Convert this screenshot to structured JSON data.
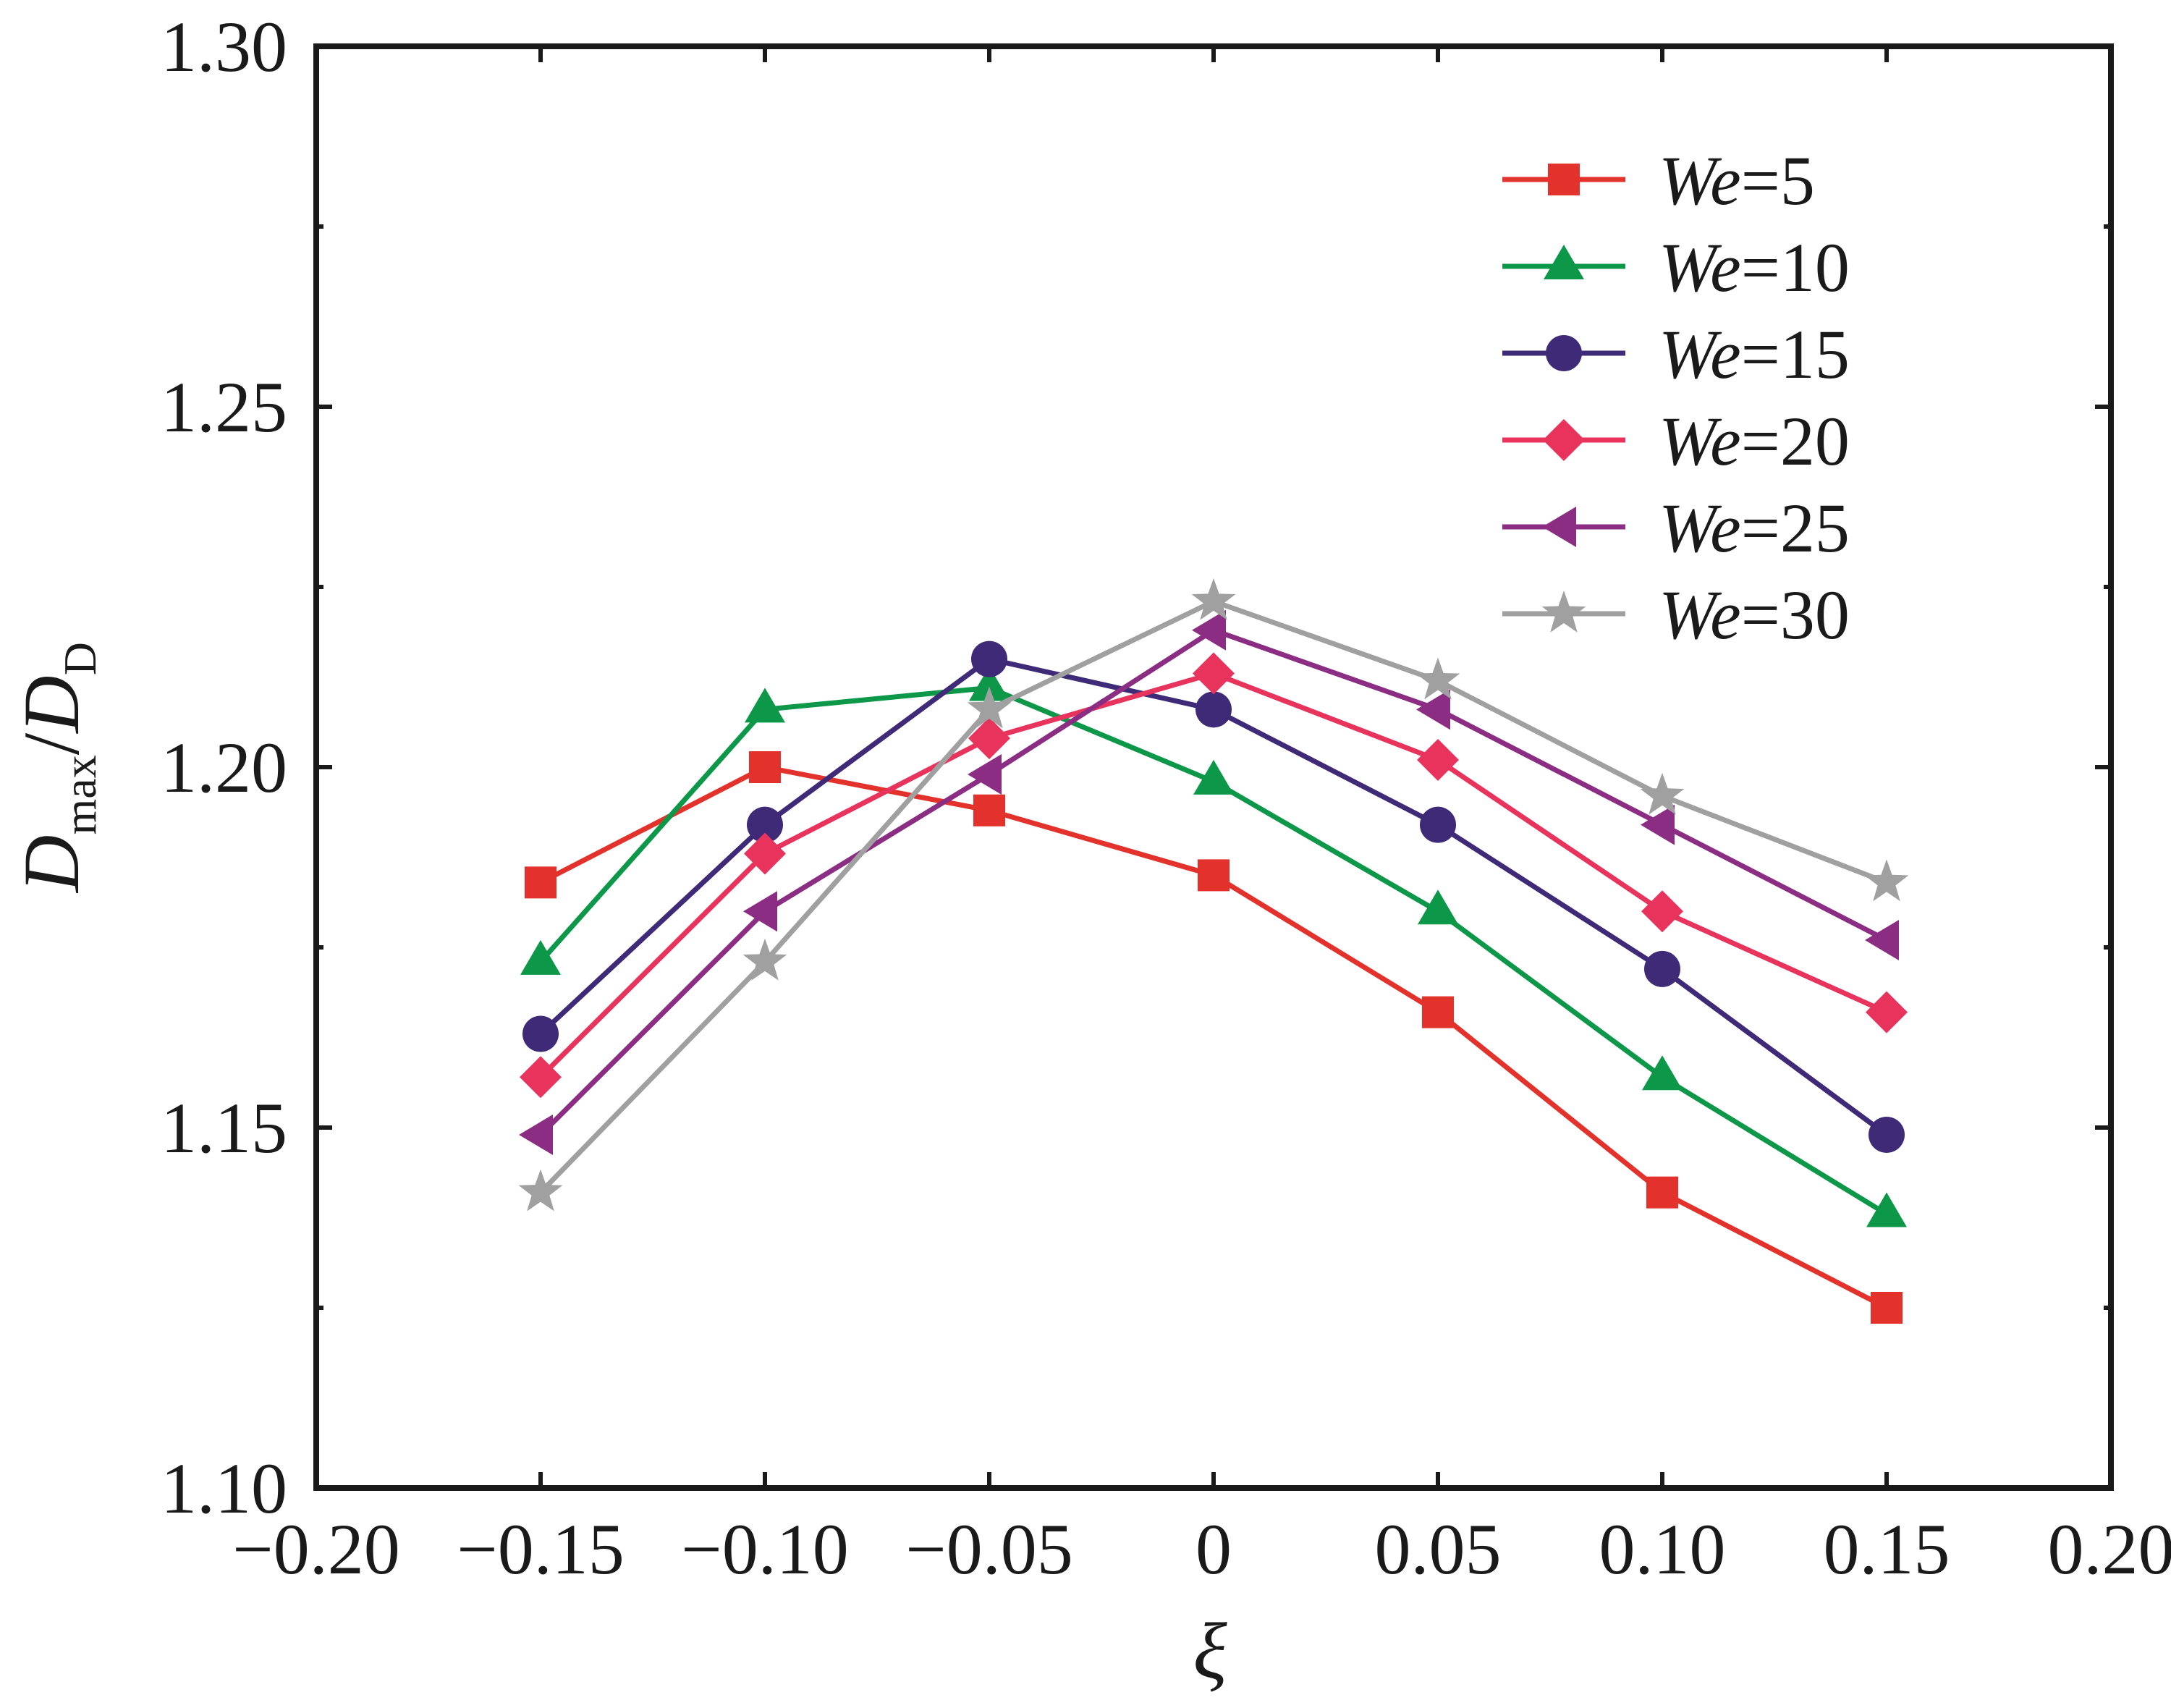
{
  "chart_data": {
    "type": "line",
    "title": "",
    "xlabel": "ξ",
    "ylabel": {
      "main": "D",
      "sub": "max",
      "sep": "/",
      "main2": "D",
      "sub2": "D"
    },
    "xlim": [
      -0.2,
      0.2
    ],
    "ylim": [
      1.1,
      1.3
    ],
    "x": [
      -0.15,
      -0.1,
      -0.05,
      0,
      0.05,
      0.1,
      0.15
    ],
    "xticks": [
      -0.2,
      -0.15,
      -0.1,
      -0.05,
      0,
      0.05,
      0.1,
      0.15,
      0.2
    ],
    "xtick_labels": [
      "−0.20",
      "−0.15",
      "−0.10",
      "−0.05",
      "0",
      "0.05",
      "0.10",
      "0.15",
      "0.20"
    ],
    "yticks": [
      1.1,
      1.15,
      1.2,
      1.25,
      1.3
    ],
    "ytick_labels": [
      "1.10",
      "1.15",
      "1.20",
      "1.25",
      "1.30"
    ],
    "grid": false,
    "legend_position": "top-right",
    "series": [
      {
        "name": "We=5",
        "prefix": "We",
        "suffix": "=5",
        "marker": "square",
        "color": "#e3312b",
        "values": [
          1.184,
          1.2,
          1.194,
          1.185,
          1.166,
          1.141,
          1.125
        ]
      },
      {
        "name": "We=10",
        "prefix": "We",
        "suffix": "=10",
        "marker": "triangle-up",
        "color": "#0d9748",
        "values": [
          1.173,
          1.208,
          1.211,
          1.198,
          1.18,
          1.157,
          1.138
        ]
      },
      {
        "name": "We=15",
        "prefix": "We",
        "suffix": "=15",
        "marker": "circle",
        "color": "#3f2a78",
        "values": [
          1.163,
          1.192,
          1.215,
          1.208,
          1.192,
          1.172,
          1.149
        ]
      },
      {
        "name": "We=20",
        "prefix": "We",
        "suffix": "=20",
        "marker": "diamond",
        "color": "#e8335c",
        "values": [
          1.157,
          1.188,
          1.204,
          1.213,
          1.201,
          1.18,
          1.166
        ]
      },
      {
        "name": "We=25",
        "prefix": "We",
        "suffix": "=25",
        "marker": "triangle-left",
        "color": "#8c2d84",
        "values": [
          1.149,
          1.18,
          1.199,
          1.219,
          1.208,
          1.192,
          1.176
        ]
      },
      {
        "name": "We=30",
        "prefix": "We",
        "suffix": "=30",
        "marker": "star",
        "color": "#a0a0a0",
        "values": [
          1.141,
          1.173,
          1.208,
          1.223,
          1.212,
          1.196,
          1.184
        ]
      }
    ]
  }
}
